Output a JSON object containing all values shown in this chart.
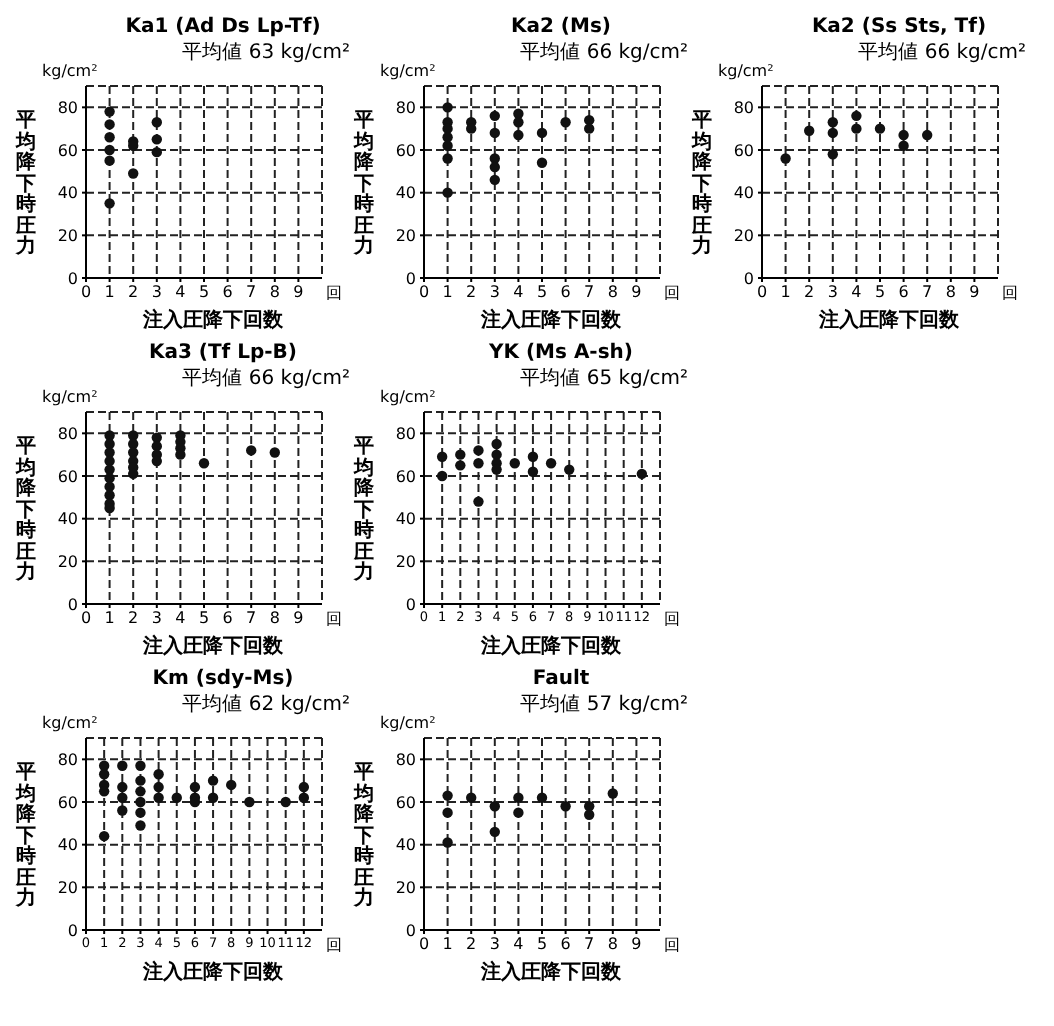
{
  "chart_data": [
    {
      "type": "scatter",
      "title": "Ka1 (Ad Ds Lp-Tf)",
      "subtitle": "平均値 63 kg/cm²",
      "xlabel": "注入圧降下回数",
      "ylabel": "平均降下時圧力",
      "annotations": [
        "kg/cm²",
        "回"
      ],
      "xlim": [
        0,
        10
      ],
      "xticks": [
        0,
        1,
        2,
        3,
        4,
        5,
        6,
        7,
        8,
        9
      ],
      "ylim": [
        0,
        90
      ],
      "yticks": [
        0,
        20,
        40,
        60,
        80
      ],
      "grid": true,
      "marker": "circle",
      "series": [
        {
          "color": "#111111",
          "x": [
            1,
            1,
            1,
            1,
            1,
            1,
            2,
            2,
            2,
            3,
            3,
            3
          ],
          "values": [
            78,
            72,
            66,
            60,
            55,
            35,
            64,
            62,
            49,
            73,
            65,
            59
          ]
        }
      ]
    },
    {
      "type": "scatter",
      "title": "Ka2 (Ms)",
      "subtitle": "平均値 66 kg/cm²",
      "xlabel": "注入圧降下回数",
      "ylabel": "平均降下時圧力",
      "annotations": [
        "kg/cm²",
        "回"
      ],
      "xlim": [
        0,
        10
      ],
      "xticks": [
        0,
        1,
        2,
        3,
        4,
        5,
        6,
        7,
        8,
        9
      ],
      "ylim": [
        0,
        90
      ],
      "yticks": [
        0,
        20,
        40,
        60,
        80
      ],
      "grid": true,
      "marker": "circle",
      "series": [
        {
          "color": "#111111",
          "x": [
            1,
            1,
            1,
            1,
            1,
            1,
            1,
            2,
            2,
            3,
            3,
            3,
            3,
            3,
            4,
            4,
            4,
            5,
            5,
            6,
            7,
            7
          ],
          "values": [
            80,
            73,
            70,
            66,
            62,
            56,
            40,
            73,
            70,
            76,
            68,
            56,
            52,
            46,
            77,
            73,
            67,
            68,
            54,
            73,
            74,
            70
          ]
        }
      ]
    },
    {
      "type": "scatter",
      "title": "Ka2 (Ss Sts, Tf)",
      "subtitle": "平均値 66 kg/cm²",
      "xlabel": "注入圧降下回数",
      "ylabel": "平均降下時圧力",
      "annotations": [
        "kg/cm²",
        "回"
      ],
      "xlim": [
        0,
        10
      ],
      "xticks": [
        0,
        1,
        2,
        3,
        4,
        5,
        6,
        7,
        8,
        9
      ],
      "ylim": [
        0,
        90
      ],
      "yticks": [
        0,
        20,
        40,
        60,
        80
      ],
      "grid": true,
      "marker": "circle",
      "series": [
        {
          "color": "#111111",
          "x": [
            1,
            2,
            3,
            3,
            3,
            4,
            4,
            5,
            6,
            6,
            7
          ],
          "values": [
            56,
            69,
            73,
            68,
            58,
            76,
            70,
            70,
            67,
            62,
            67
          ]
        }
      ]
    },
    {
      "type": "scatter",
      "title": "Ka3 (Tf Lp-B)",
      "subtitle": "平均値 66 kg/cm²",
      "xlabel": "注入圧降下回数",
      "ylabel": "平均降下時圧力",
      "annotations": [
        "kg/cm²",
        "回"
      ],
      "xlim": [
        0,
        10
      ],
      "xticks": [
        0,
        1,
        2,
        3,
        4,
        5,
        6,
        7,
        8,
        9
      ],
      "ylim": [
        0,
        90
      ],
      "yticks": [
        0,
        20,
        40,
        60,
        80
      ],
      "grid": true,
      "marker": "circle",
      "series": [
        {
          "color": "#111111",
          "x": [
            1,
            1,
            1,
            1,
            1,
            1,
            1,
            1,
            1,
            1,
            2,
            2,
            2,
            2,
            2,
            2,
            3,
            3,
            3,
            3,
            4,
            4,
            4,
            4,
            5,
            7,
            8
          ],
          "values": [
            79,
            75,
            71,
            67,
            63,
            59,
            55,
            51,
            47,
            45,
            79,
            75,
            71,
            67,
            64,
            61,
            78,
            74,
            70,
            67,
            79,
            76,
            73,
            70,
            66,
            72,
            71
          ]
        }
      ]
    },
    {
      "type": "scatter",
      "title": "YK (Ms A-sh)",
      "subtitle": "平均値 65 kg/cm²",
      "xlabel": "注入圧降下回数",
      "ylabel": "平均降下時圧力",
      "annotations": [
        "kg/cm²",
        "回"
      ],
      "xlim": [
        0,
        13
      ],
      "xticks": [
        0,
        1,
        2,
        3,
        4,
        5,
        6,
        7,
        8,
        9,
        10,
        11,
        12
      ],
      "ylim": [
        0,
        90
      ],
      "yticks": [
        0,
        20,
        40,
        60,
        80
      ],
      "grid": true,
      "marker": "circle",
      "series": [
        {
          "color": "#111111",
          "x": [
            1,
            1,
            2,
            2,
            3,
            3,
            3,
            4,
            4,
            4,
            4,
            5,
            6,
            6,
            7,
            8,
            12
          ],
          "values": [
            69,
            60,
            70,
            65,
            72,
            66,
            48,
            75,
            70,
            66,
            63,
            66,
            69,
            62,
            66,
            63,
            61
          ]
        }
      ]
    },
    {
      "type": "scatter",
      "title": "Km (sdy-Ms)",
      "subtitle": "平均値 62 kg/cm²",
      "xlabel": "注入圧降下回数",
      "ylabel": "平均降下時圧力",
      "annotations": [
        "kg/cm²",
        "回"
      ],
      "xlim": [
        0,
        13
      ],
      "xticks": [
        0,
        1,
        2,
        3,
        4,
        5,
        6,
        7,
        8,
        9,
        10,
        11,
        12
      ],
      "ylim": [
        0,
        90
      ],
      "yticks": [
        0,
        20,
        40,
        60,
        80
      ],
      "grid": true,
      "marker": "circle",
      "series": [
        {
          "color": "#111111",
          "x": [
            1,
            1,
            1,
            1,
            1,
            2,
            2,
            2,
            2,
            3,
            3,
            3,
            3,
            3,
            3,
            4,
            4,
            4,
            5,
            6,
            6,
            6,
            7,
            7,
            8,
            9,
            11,
            12,
            12
          ],
          "values": [
            77,
            73,
            68,
            65,
            44,
            77,
            67,
            62,
            56,
            77,
            70,
            65,
            60,
            55,
            49,
            73,
            67,
            62,
            62,
            67,
            62,
            60,
            70,
            62,
            68,
            60,
            60,
            67,
            62
          ]
        }
      ]
    },
    {
      "type": "scatter",
      "title": "Fault",
      "subtitle": "平均値 57 kg/cm²",
      "xlabel": "注入圧降下回数",
      "ylabel": "平均降下時圧力",
      "annotations": [
        "kg/cm²",
        "回"
      ],
      "xlim": [
        0,
        10
      ],
      "xticks": [
        0,
        1,
        2,
        3,
        4,
        5,
        6,
        7,
        8,
        9
      ],
      "ylim": [
        0,
        90
      ],
      "yticks": [
        0,
        20,
        40,
        60,
        80
      ],
      "grid": true,
      "marker": "circle",
      "series": [
        {
          "color": "#111111",
          "x": [
            1,
            1,
            1,
            2,
            3,
            3,
            4,
            4,
            5,
            6,
            7,
            7,
            8
          ],
          "values": [
            63,
            55,
            41,
            62,
            58,
            46,
            62,
            55,
            62,
            58,
            58,
            54,
            64
          ]
        }
      ]
    }
  ]
}
